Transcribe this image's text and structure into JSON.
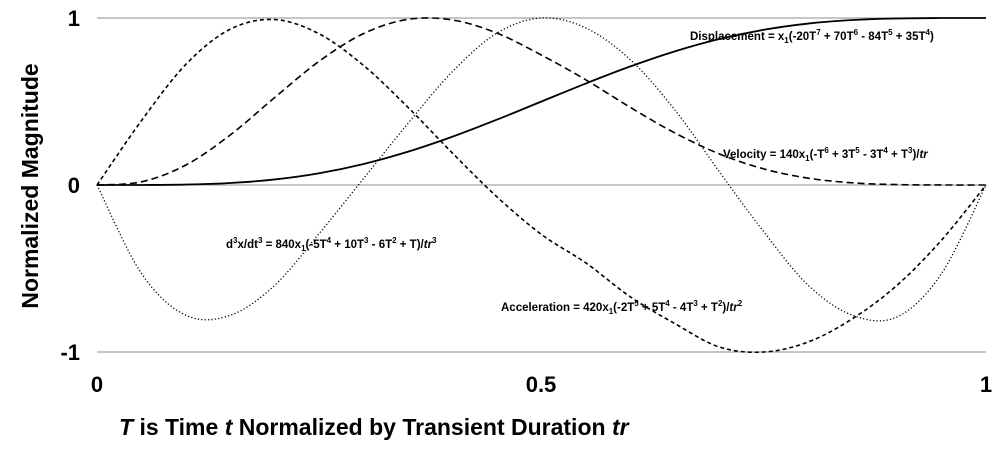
{
  "chart_data": {
    "type": "line",
    "xlabel": "T is Time t Normalized by Transient Duration tr",
    "xlabel_parts": [
      {
        "text": "T",
        "italic": true
      },
      {
        "text": " is Time ",
        "italic": false
      },
      {
        "text": "t",
        "italic": true
      },
      {
        "text": " Normalized by Transient Duration ",
        "italic": false
      },
      {
        "text": "tr",
        "italic": true
      }
    ],
    "ylabel": "Normalized Magnitude",
    "xlim": [
      0,
      1
    ],
    "ylim": [
      -1,
      1
    ],
    "x_ticks": [
      0,
      0.5,
      1
    ],
    "x_tick_labels": [
      "0",
      "0.5",
      "1"
    ],
    "y_ticks": [
      -1,
      0,
      1
    ],
    "y_tick_labels": [
      "-1",
      "0",
      "1"
    ],
    "grid": "horizontal",
    "x": [
      0,
      0.05,
      0.1,
      0.15,
      0.2,
      0.25,
      0.3,
      0.35,
      0.4,
      0.45,
      0.5,
      0.55,
      0.6,
      0.65,
      0.7,
      0.75,
      0.8,
      0.85,
      0.9,
      0.95,
      1
    ],
    "series": [
      {
        "label": "displacement",
        "line_style": "solid",
        "values": [
          0.0,
          0.0002,
          0.0027,
          0.0121,
          0.0333,
          0.0706,
          0.126,
          0.1998,
          0.2898,
          0.3917,
          0.5,
          0.6083,
          0.7102,
          0.8002,
          0.874,
          0.9294,
          0.9667,
          0.9879,
          0.9973,
          0.9998,
          1.0
        ]
      },
      {
        "label": "velocity",
        "line_style": "dashed",
        "values": [
          0.0,
          0.0189,
          0.1198,
          0.3,
          0.5243,
          0.7416,
          0.9072,
          0.9921,
          0.9881,
          0.9091,
          0.7778,
          0.6292,
          0.4645,
          0.3117,
          0.1864,
          0.0965,
          0.0409,
          0.0128,
          0.0024,
          0.0001,
          0.0
        ]
      },
      {
        "label": "acceleration",
        "line_style": "short-dashed",
        "values": [
          0.0,
          0.3853,
          0.7224,
          0.9333,
          0.9905,
          0.9047,
          0.715,
          0.464,
          0.1901,
          -0.0714,
          -0.2963,
          -0.4668,
          -0.67,
          -0.83,
          -0.97,
          -1.0,
          -0.94,
          -0.8,
          -0.6,
          -0.33,
          0.0
        ]
      },
      {
        "label": "jerk",
        "line_style": "dotted",
        "values": [
          0.0,
          -0.53,
          -0.78,
          -0.78,
          -0.6,
          -0.29,
          0.04,
          0.37,
          0.68,
          0.91,
          1.0,
          0.94,
          0.75,
          0.45,
          0.08,
          -0.28,
          -0.6,
          -0.78,
          -0.79,
          -0.53,
          0.0
        ]
      }
    ],
    "annotations": {
      "displacement": {
        "parts": [
          {
            "t": "Displacement = x"
          },
          {
            "t": "1",
            "s": "sub"
          },
          {
            "t": "(-20T"
          },
          {
            "t": "7",
            "s": "sup"
          },
          {
            "t": " + 70T"
          },
          {
            "t": "6",
            "s": "sup"
          },
          {
            "t": " - 84T"
          },
          {
            "t": "5",
            "s": "sup"
          },
          {
            "t": " + 35T"
          },
          {
            "t": "4",
            "s": "sup"
          },
          {
            "t": ")"
          }
        ]
      },
      "velocity": {
        "parts": [
          {
            "t": "Velocity = 140x"
          },
          {
            "t": "1",
            "s": "sub"
          },
          {
            "t": "(-T"
          },
          {
            "t": "6",
            "s": "sup"
          },
          {
            "t": " + 3T"
          },
          {
            "t": "5",
            "s": "sup"
          },
          {
            "t": " - 3T"
          },
          {
            "t": "4",
            "s": "sup"
          },
          {
            "t": " + T"
          },
          {
            "t": "3",
            "s": "sup"
          },
          {
            "t": ")/"
          },
          {
            "t": "tr",
            "i": true
          }
        ]
      },
      "jerk": {
        "parts": [
          {
            "t": "d"
          },
          {
            "t": "3",
            "s": "sup"
          },
          {
            "t": "x/dt"
          },
          {
            "t": "3",
            "s": "sup"
          },
          {
            "t": " = 840x"
          },
          {
            "t": "1",
            "s": "sub"
          },
          {
            "t": "(-5T"
          },
          {
            "t": "4",
            "s": "sup"
          },
          {
            "t": " + 10T"
          },
          {
            "t": "3",
            "s": "sup"
          },
          {
            "t": " - 6T"
          },
          {
            "t": "2",
            "s": "sup"
          },
          {
            "t": " + T)/"
          },
          {
            "t": "tr",
            "i": true
          },
          {
            "t": "3",
            "s": "sup"
          }
        ]
      },
      "acceleration": {
        "parts": [
          {
            "t": "Acceleration = 420x"
          },
          {
            "t": "1",
            "s": "sub"
          },
          {
            "t": "(-2T"
          },
          {
            "t": "5",
            "s": "sup"
          },
          {
            "t": " + 5T"
          },
          {
            "t": "4",
            "s": "sup"
          },
          {
            "t": " - 4T"
          },
          {
            "t": "3",
            "s": "sup"
          },
          {
            "t": " + T"
          },
          {
            "t": "2",
            "s": "sup"
          },
          {
            "t": ")/"
          },
          {
            "t": "tr",
            "i": true
          },
          {
            "t": "2",
            "s": "sup"
          }
        ]
      }
    }
  }
}
